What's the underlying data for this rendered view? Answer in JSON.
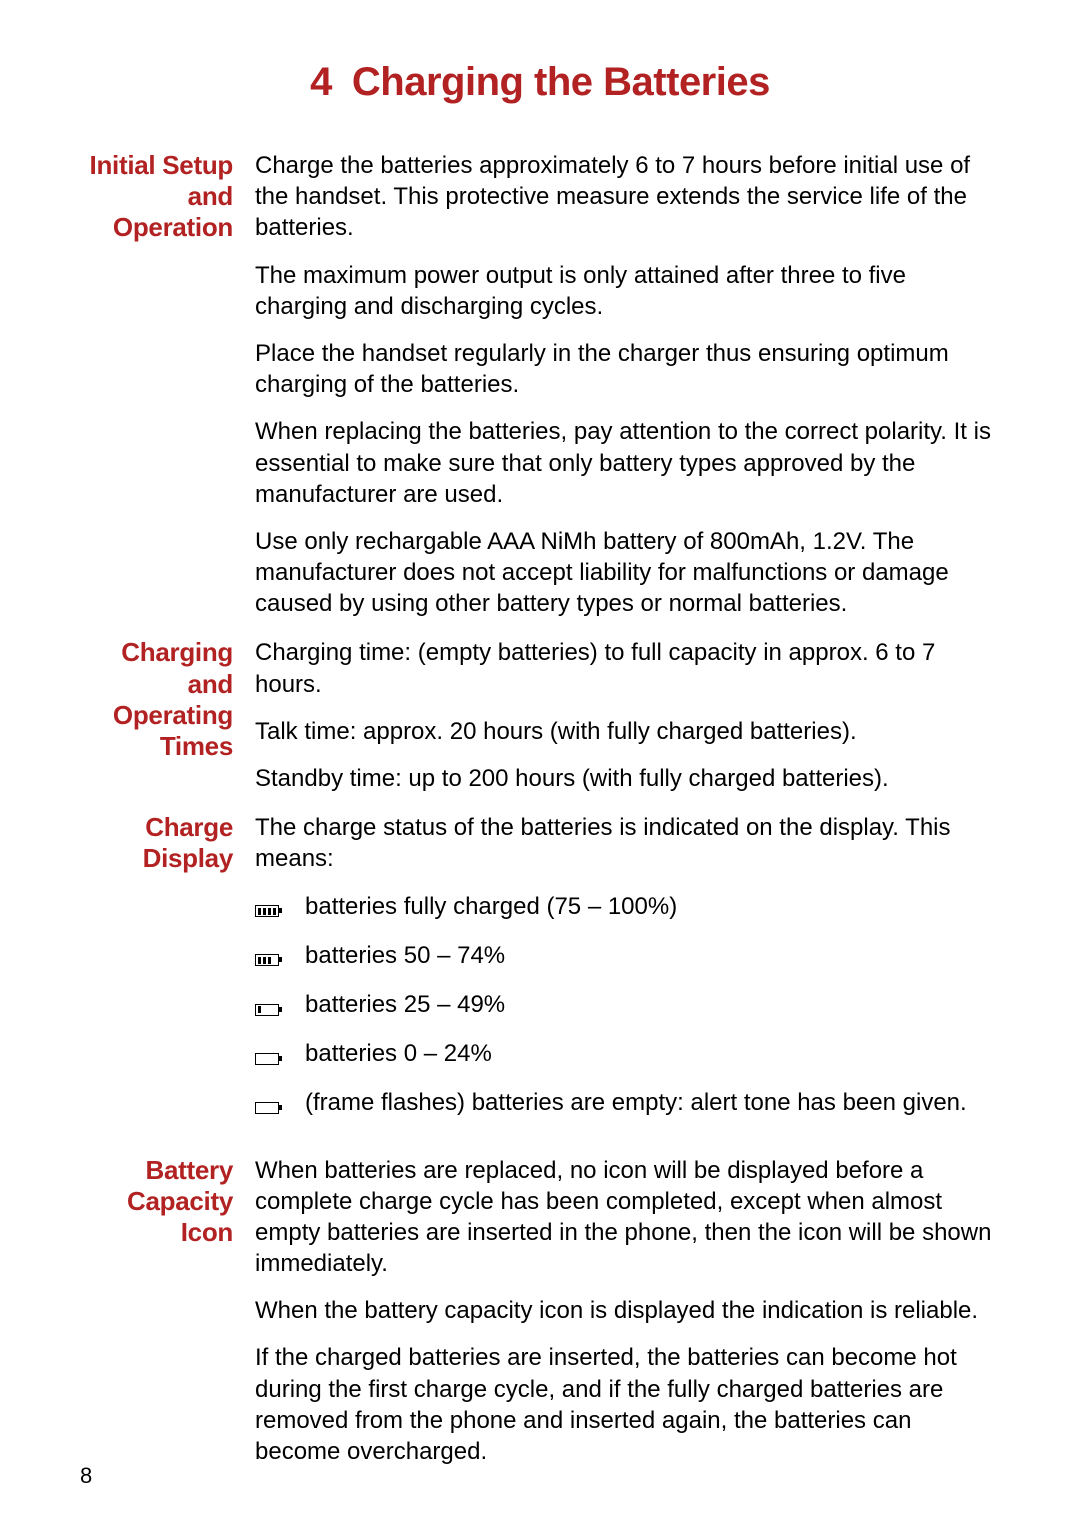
{
  "colors": {
    "accent": "#b22222",
    "text": "#000000",
    "bg": "#ffffff"
  },
  "chapter": {
    "number": "4",
    "title": "Charging the Batteries"
  },
  "sections": {
    "initial": {
      "label": "Initial Setup and Operation",
      "p1": "Charge the batteries approximately 6 to 7 hours before initial use of the handset. This protective measure extends the ser­vice life of the batteries.",
      "p2": "The maximum power output is only attained after three to five charging and discharging cycles.",
      "p3": "Place the handset regularly in the charger thus ensuring opti­mum charging of the batteries.",
      "p4": "When replacing the batteries, pay attention to the correct polarity. It is essential to make sure that only battery types approved by the manufacturer are used.",
      "p5": "Use only rechargable AAA NiMh battery of 800mAh, 1.2V. The manufacturer does not accept liability for malfunctions or dam­age caused by using other battery types or normal batteries."
    },
    "times": {
      "label": "Charging and Operating Times",
      "p1": "Charging time: (empty batteries) to full capacity in approx. 6 to 7 hours.",
      "p2": "Talk time: approx. 20 hours (with fully charged batteries).",
      "p3": "Standby time: up to 200 hours (with fully charged batteries)."
    },
    "display": {
      "label": "Charge Display",
      "intro": "The charge status of the batteries is indicated on the display. This means:",
      "items": [
        {
          "bars": 4,
          "text": "batteries fully charged (75 – 100%)"
        },
        {
          "bars": 3,
          "text": "batteries 50 – 74%"
        },
        {
          "bars": 1,
          "text": "batteries 25 – 49%"
        },
        {
          "bars": 0,
          "text": "batteries 0 – 24%"
        },
        {
          "bars": 0,
          "text": "(frame flashes) batteries are empty: alert tone has been given."
        }
      ]
    },
    "capacity": {
      "label": "Battery Capacity Icon",
      "p1": "When batteries are replaced, no icon will be displayed before a complete charge cycle has been completed, except when almost empty batteries are inserted in the phone, then the icon will be shown immediately.",
      "p2": "When the battery capacity icon is displayed the indication is reliable.",
      "p3": "If the charged batteries are inserted, the batteries can become hot during the first charge cycle, and if the fully charged batter­ies are removed from the phone and inserted again, the batter­ies can become overcharged."
    }
  },
  "pageNumber": "8"
}
